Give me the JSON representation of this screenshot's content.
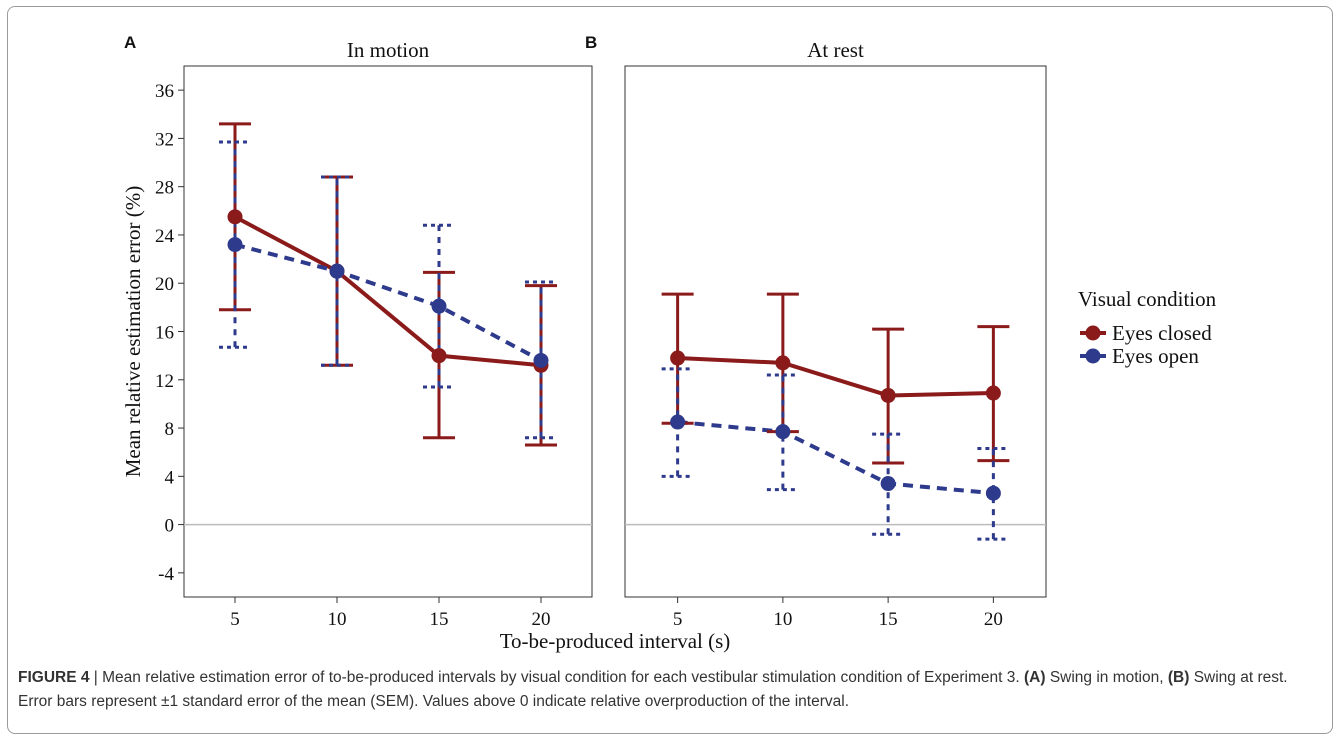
{
  "chart_data": {
    "type": "line",
    "ylabel": "Mean relative estimation error (%)",
    "xlabel": "To-be-produced interval (s)",
    "ylim": [
      -6,
      38
    ],
    "yticks": [
      -4,
      0,
      4,
      8,
      12,
      16,
      20,
      24,
      28,
      32,
      36
    ],
    "x": [
      5,
      10,
      15,
      20
    ],
    "reference_line_y": 0,
    "legend": {
      "title": "Visual condition",
      "position": "right",
      "entries": [
        {
          "label": "Eyes closed",
          "color": "#8b1a1a",
          "dash": "solid"
        },
        {
          "label": "Eyes open",
          "color": "#2e3a8c",
          "dash": "dashed"
        }
      ]
    },
    "panels": [
      {
        "letter": "A",
        "title": "In motion",
        "series": [
          {
            "name": "Eyes closed",
            "values": [
              25.5,
              21.0,
              14.0,
              13.2
            ],
            "lower": [
              17.8,
              13.2,
              7.2,
              6.6
            ],
            "upper": [
              33.2,
              28.8,
              20.9,
              19.8
            ]
          },
          {
            "name": "Eyes open",
            "values": [
              23.2,
              21.0,
              18.1,
              13.6
            ],
            "lower": [
              14.7,
              13.2,
              11.4,
              7.2
            ],
            "upper": [
              31.7,
              28.8,
              24.8,
              20.1
            ]
          }
        ]
      },
      {
        "letter": "B",
        "title": "At rest",
        "series": [
          {
            "name": "Eyes closed",
            "values": [
              13.8,
              13.4,
              10.7,
              10.9
            ],
            "lower": [
              8.4,
              7.7,
              5.1,
              5.3
            ],
            "upper": [
              19.1,
              19.1,
              16.2,
              16.4
            ]
          },
          {
            "name": "Eyes open",
            "values": [
              8.5,
              7.7,
              3.4,
              2.6
            ],
            "lower": [
              4.0,
              2.9,
              -0.8,
              -1.2
            ],
            "upper": [
              12.9,
              12.4,
              7.5,
              6.3
            ]
          }
        ]
      }
    ]
  },
  "caption": {
    "figure_label": "FIGURE 4",
    "separator": " | ",
    "text_1": "Mean relative estimation error of to-be-produced intervals by visual condition for each vestibular stimulation condition of Experiment 3. ",
    "label_a": "(A)",
    "text_2": " Swing in motion, ",
    "label_b": "(B)",
    "text_3": " Swing at rest. Error bars represent ±1 standard error of the mean (SEM). Values above 0 indicate relative overproduction of the interval."
  }
}
